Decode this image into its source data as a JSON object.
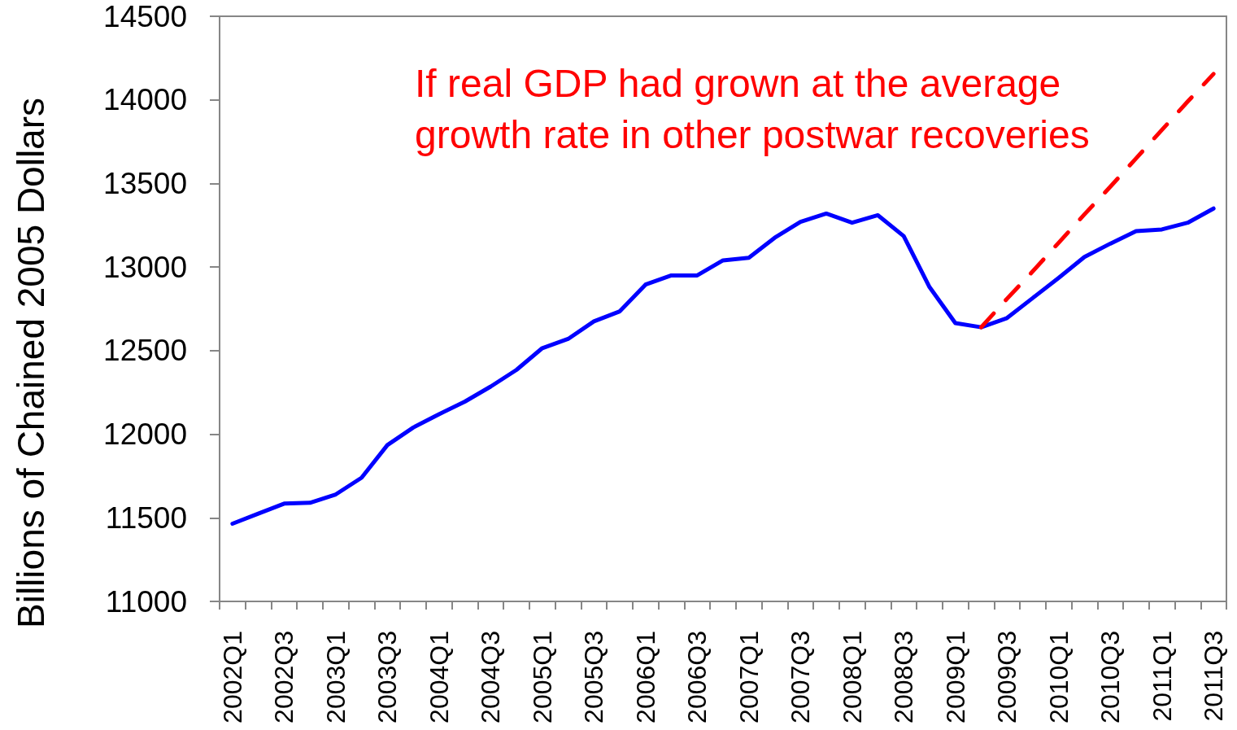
{
  "chart_data": {
    "type": "line",
    "ylabel": "Billions of Chained 2005 Dollars",
    "categories": [
      "2002Q1",
      null,
      "2002Q3",
      null,
      "2003Q1",
      null,
      "2003Q3",
      null,
      "2004Q1",
      null,
      "2004Q3",
      null,
      "2005Q1",
      null,
      "2005Q3",
      null,
      "2006Q1",
      null,
      "2006Q3",
      null,
      "2007Q1",
      null,
      "2007Q3",
      null,
      "2008Q1",
      null,
      "2008Q3",
      null,
      "2009Q1",
      null,
      "2009Q3",
      null,
      "2010Q1",
      null,
      "2010Q3",
      null,
      "2011Q1",
      null,
      "2011Q3"
    ],
    "series": [
      {
        "color": "#0000ff",
        "values": [
          11465,
          11525,
          11585,
          11590,
          11640,
          11740,
          11935,
          12040,
          12120,
          12195,
          12285,
          12385,
          12515,
          12570,
          12675,
          12735,
          12895,
          12950,
          12950,
          13040,
          13055,
          13175,
          13270,
          13320,
          13265,
          13310,
          13185,
          12880,
          12665,
          12640,
          12695,
          12815,
          12935,
          13060,
          13140,
          13215,
          13225,
          13265,
          13350
        ]
      },
      {
        "name": "If real GDP had grown at the average growth rate in other postwar recoveries",
        "color": "#ff0000",
        "line_style": "dashed",
        "values": [
          null,
          null,
          null,
          null,
          null,
          null,
          null,
          null,
          null,
          null,
          null,
          null,
          null,
          null,
          null,
          null,
          null,
          null,
          null,
          null,
          null,
          null,
          null,
          null,
          null,
          null,
          null,
          null,
          null,
          12640,
          12810,
          12975,
          13145,
          13315,
          13480,
          13650,
          13820,
          13990,
          14155
        ]
      }
    ],
    "ylim": [
      11000,
      14500
    ],
    "yticks": [
      11000,
      11500,
      12000,
      12500,
      13000,
      13500,
      14000,
      14500
    ],
    "grid": false,
    "legend": false,
    "marker": "none",
    "line_style": "solid"
  }
}
